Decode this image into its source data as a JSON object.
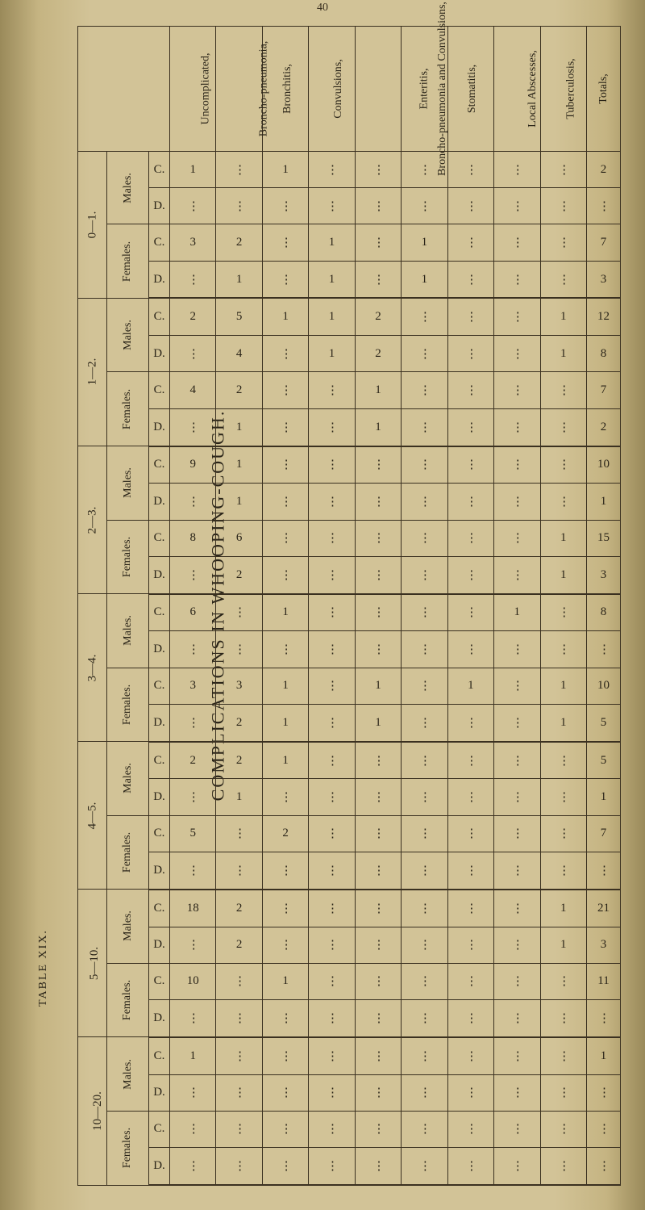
{
  "top_marker": "40",
  "vertical_title": "COMPLICATIONS IN WHOOPING-COUGH.",
  "vertical_subtitle": "TABLE XIX.",
  "totals_label": "Totals,",
  "conditions": [
    {
      "label": "Uncomplicated,"
    },
    {
      "label": "Broncho-pneumonia,"
    },
    {
      "label": "Bronchitis,"
    },
    {
      "label": "Convulsions,"
    },
    {
      "label": "Broncho-pneumonia and Convulsions,"
    },
    {
      "label": "Enteritis,"
    },
    {
      "label": "Stomatitis,"
    },
    {
      "label": "Local Abscesses,"
    },
    {
      "label": "Tuberculosis,"
    }
  ],
  "age_groups": [
    {
      "label": "0—1.",
      "sexes": [
        {
          "label": "Males.",
          "rows": [
            {
              "cd": "C.",
              "vals": [
                "1",
                "..",
                "1",
                "..",
                "..",
                "..",
                "..",
                "..",
                ".."
              ],
              "total": "2"
            },
            {
              "cd": "D.",
              "vals": [
                "..",
                "..",
                "..",
                "..",
                "..",
                "..",
                "..",
                "..",
                ".."
              ],
              "total": ".."
            }
          ]
        },
        {
          "label": "Females.",
          "rows": [
            {
              "cd": "C.",
              "vals": [
                "3",
                "2",
                "..",
                "1",
                "..",
                "1",
                "..",
                "..",
                ".."
              ],
              "total": "7"
            },
            {
              "cd": "D.",
              "vals": [
                "..",
                "1",
                "..",
                "1",
                "..",
                "1",
                "..",
                "..",
                ".."
              ],
              "total": "3"
            }
          ]
        }
      ]
    },
    {
      "label": "1—2.",
      "sexes": [
        {
          "label": "Males.",
          "rows": [
            {
              "cd": "C.",
              "vals": [
                "2",
                "5",
                "1",
                "1",
                "2",
                "..",
                "..",
                "..",
                "1"
              ],
              "total": "12"
            },
            {
              "cd": "D.",
              "vals": [
                "..",
                "4",
                "..",
                "1",
                "2",
                "..",
                "..",
                "..",
                "1"
              ],
              "total": "8"
            }
          ]
        },
        {
          "label": "Females.",
          "rows": [
            {
              "cd": "C.",
              "vals": [
                "4",
                "2",
                "..",
                "..",
                "1",
                "..",
                "..",
                "..",
                ".."
              ],
              "total": "7"
            },
            {
              "cd": "D.",
              "vals": [
                "..",
                "1",
                "..",
                "..",
                "1",
                "..",
                "..",
                "..",
                ".."
              ],
              "total": "2"
            }
          ]
        }
      ]
    },
    {
      "label": "2—3.",
      "sexes": [
        {
          "label": "Males.",
          "rows": [
            {
              "cd": "C.",
              "vals": [
                "9",
                "1",
                "..",
                "..",
                "..",
                "..",
                "..",
                "..",
                ".."
              ],
              "total": "10"
            },
            {
              "cd": "D.",
              "vals": [
                "..",
                "1",
                "..",
                "..",
                "..",
                "..",
                "..",
                "..",
                ".."
              ],
              "total": "1"
            }
          ]
        },
        {
          "label": "Females.",
          "rows": [
            {
              "cd": "C.",
              "vals": [
                "8",
                "6",
                "..",
                "..",
                "..",
                "..",
                "..",
                "..",
                "1"
              ],
              "total": "15"
            },
            {
              "cd": "D.",
              "vals": [
                "..",
                "2",
                "..",
                "..",
                "..",
                "..",
                "..",
                "..",
                "1"
              ],
              "total": "3"
            }
          ]
        }
      ]
    },
    {
      "label": "3—4.",
      "sexes": [
        {
          "label": "Males.",
          "rows": [
            {
              "cd": "C.",
              "vals": [
                "6",
                "..",
                "1",
                "..",
                "..",
                "..",
                "..",
                "1",
                ".."
              ],
              "total": "8"
            },
            {
              "cd": "D.",
              "vals": [
                "..",
                "..",
                "..",
                "..",
                "..",
                "..",
                "..",
                "..",
                ".."
              ],
              "total": ".."
            }
          ]
        },
        {
          "label": "Females.",
          "rows": [
            {
              "cd": "C.",
              "vals": [
                "3",
                "3",
                "1",
                "..",
                "1",
                "..",
                "1",
                "..",
                "1"
              ],
              "total": "10"
            },
            {
              "cd": "D.",
              "vals": [
                "..",
                "2",
                "1",
                "..",
                "1",
                "..",
                "..",
                "..",
                "1"
              ],
              "total": "5"
            }
          ]
        }
      ]
    },
    {
      "label": "4—5.",
      "sexes": [
        {
          "label": "Males.",
          "rows": [
            {
              "cd": "C.",
              "vals": [
                "2",
                "2",
                "1",
                "..",
                "..",
                "..",
                "..",
                "..",
                ".."
              ],
              "total": "5"
            },
            {
              "cd": "D.",
              "vals": [
                "..",
                "1",
                "..",
                "..",
                "..",
                "..",
                "..",
                "..",
                ".."
              ],
              "total": "1"
            }
          ]
        },
        {
          "label": "Females.",
          "rows": [
            {
              "cd": "C.",
              "vals": [
                "5",
                "..",
                "2",
                "..",
                "..",
                "..",
                "..",
                "..",
                ".."
              ],
              "total": "7"
            },
            {
              "cd": "D.",
              "vals": [
                "..",
                "..",
                "..",
                "..",
                "..",
                "..",
                "..",
                "..",
                ".."
              ],
              "total": ".."
            }
          ]
        }
      ]
    },
    {
      "label": "5—10.",
      "sexes": [
        {
          "label": "Males.",
          "rows": [
            {
              "cd": "C.",
              "vals": [
                "18",
                "2",
                "..",
                "..",
                "..",
                "..",
                "..",
                "..",
                "1"
              ],
              "total": "21"
            },
            {
              "cd": "D.",
              "vals": [
                "..",
                "2",
                "..",
                "..",
                "..",
                "..",
                "..",
                "..",
                "1"
              ],
              "total": "3"
            }
          ]
        },
        {
          "label": "Females.",
          "rows": [
            {
              "cd": "C.",
              "vals": [
                "10",
                "..",
                "1",
                "..",
                "..",
                "..",
                "..",
                "..",
                ".."
              ],
              "total": "11"
            },
            {
              "cd": "D.",
              "vals": [
                "..",
                "..",
                "..",
                "..",
                "..",
                "..",
                "..",
                "..",
                ".."
              ],
              "total": ".."
            }
          ]
        }
      ]
    },
    {
      "label": "10—20.",
      "sexes": [
        {
          "label": "Males.",
          "rows": [
            {
              "cd": "C.",
              "vals": [
                "1",
                "..",
                "..",
                "..",
                "..",
                "..",
                "..",
                "..",
                ".."
              ],
              "total": "1"
            },
            {
              "cd": "D.",
              "vals": [
                "..",
                "..",
                "..",
                "..",
                "..",
                "..",
                "..",
                "..",
                ".."
              ],
              "total": ".."
            }
          ]
        },
        {
          "label": "Females.",
          "rows": [
            {
              "cd": "C.",
              "vals": [
                "..",
                "..",
                "..",
                "..",
                "..",
                "..",
                "..",
                "..",
                ".."
              ],
              "total": ".."
            },
            {
              "cd": "D.",
              "vals": [
                "..",
                "..",
                "..",
                "..",
                "..",
                "..",
                "..",
                "..",
                ".."
              ],
              "total": ".."
            }
          ]
        }
      ]
    }
  ]
}
